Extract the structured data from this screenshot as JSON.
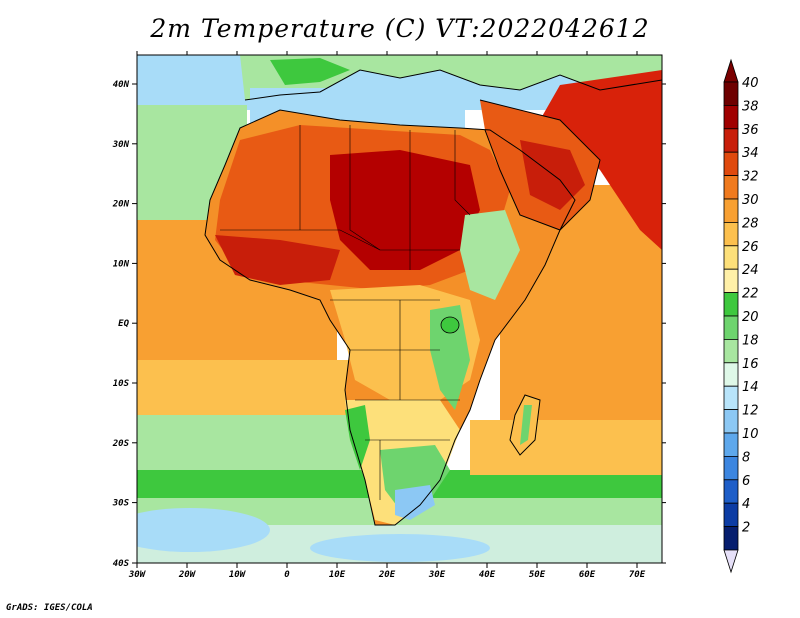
{
  "title": "2m Temperature (C) VT:2022042612",
  "credit": "GrADS: IGES/COLA",
  "map": {
    "lon_ticks": [
      "30W",
      "20W",
      "10W",
      "0",
      "10E",
      "20E",
      "30E",
      "40E",
      "50E",
      "60E",
      "70E"
    ],
    "lat_ticks": [
      "40N",
      "30N",
      "20N",
      "10N",
      "EQ",
      "10S",
      "20S",
      "30S",
      "40S"
    ]
  },
  "colorbar": {
    "levels": [
      "40",
      "38",
      "36",
      "34",
      "32",
      "30",
      "28",
      "26",
      "24",
      "22",
      "20",
      "18",
      "16",
      "14",
      "12",
      "10",
      "8",
      "6",
      "4",
      "2"
    ],
    "colors": [
      "#6e0000",
      "#a00000",
      "#c81e0a",
      "#e04a0e",
      "#f07a1e",
      "#f8a032",
      "#fcc04e",
      "#fde07a",
      "#fff0a8",
      "#3ec83e",
      "#6ed46e",
      "#a8e6a0",
      "#dff8e8",
      "#b8e4fa",
      "#8cc8f4",
      "#5ea8ec",
      "#3c86e0",
      "#1e5ec8",
      "#0c3ca4",
      "#061e6e"
    ],
    "top_color": "#7a0000",
    "bottom_color": "#e6e0f8"
  },
  "field": {
    "ocean_colors": {
      "cold": "#a8dcf8",
      "cool": "#cfeede",
      "mild": "#a8e6a0",
      "warm": "#fcc04e",
      "warm2": "#f8a032",
      "green": "#3ec83e"
    },
    "land_colors": {
      "hot": "#b40000",
      "hot2": "#d8220a",
      "warm": "#e85a14",
      "orange": "#f49028",
      "yellow": "#fcc04e",
      "green": "#6ed46e",
      "cool": "#a8e6a0"
    }
  }
}
